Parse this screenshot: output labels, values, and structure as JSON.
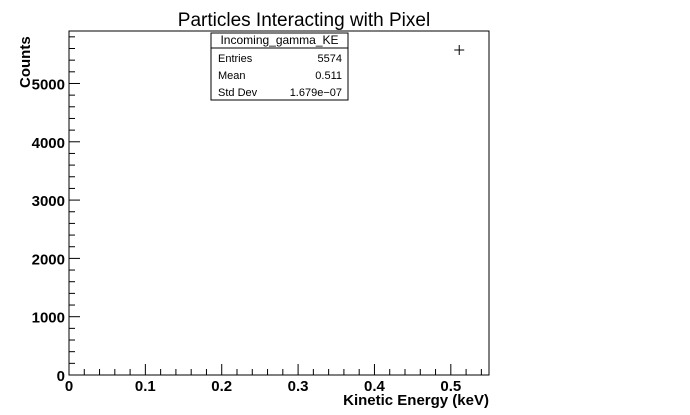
{
  "chart_data": {
    "type": "scatter",
    "title": "Particles Interacting with Pixel",
    "xlabel": "Kinetic Energy (keV)",
    "ylabel": "Counts",
    "xlim": [
      0,
      0.55
    ],
    "ylim": [
      0,
      5900
    ],
    "x_ticks": [
      0,
      0.1,
      0.2,
      0.3,
      0.4,
      0.5
    ],
    "x_tick_labels": [
      "0",
      "0.1",
      "0.2",
      "0.3",
      "0.4",
      "0.5"
    ],
    "y_ticks": [
      0,
      1000,
      2000,
      3000,
      4000,
      5000
    ],
    "y_tick_labels": [
      "0",
      "1000",
      "2000",
      "3000",
      "4000",
      "5000"
    ],
    "points": [
      {
        "x": 0.511,
        "y": 5574
      }
    ],
    "stats_box": {
      "name": "Incoming_gamma_KE",
      "rows": [
        {
          "label": "Entries",
          "value": "5574"
        },
        {
          "label": "Mean",
          "value": "0.511"
        },
        {
          "label": "Std Dev",
          "value": "1.679e−07"
        }
      ]
    },
    "grid": false,
    "marker_color": "#000000"
  }
}
